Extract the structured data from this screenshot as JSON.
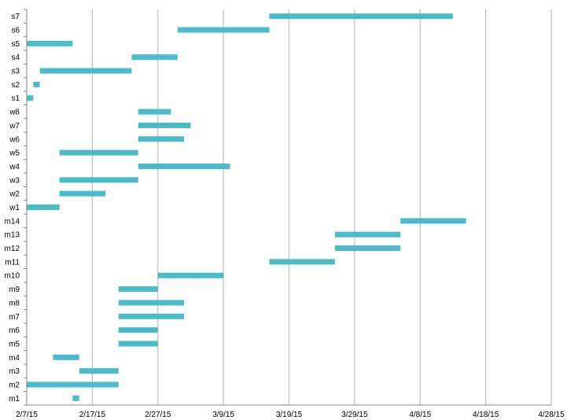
{
  "chart_data": {
    "type": "bar",
    "orientation": "horizontal",
    "subtype": "gantt",
    "title": "",
    "xlabel": "",
    "ylabel": "",
    "x_start_date": "2015-02-07",
    "xlim_days": [
      0,
      80
    ],
    "x_tick_step_days": 10,
    "x_tick_labels": [
      "2/7/15",
      "2/17/15",
      "2/27/15",
      "3/9/15",
      "3/19/15",
      "3/29/15",
      "4/8/15",
      "4/18/15",
      "4/28/15"
    ],
    "grid": true,
    "bar_color": "#4BBAC9",
    "grid_color": "#bfbfbf",
    "axis_color": "#868686",
    "categories": [
      "m1",
      "m2",
      "m3",
      "m4",
      "m5",
      "m6",
      "m7",
      "m8",
      "m9",
      "m10",
      "m11",
      "m12",
      "m13",
      "m14",
      "w1",
      "w2",
      "w3",
      "w4",
      "w5",
      "w6",
      "w7",
      "w8",
      "s1",
      "s2",
      "s3",
      "s4",
      "s5",
      "s6",
      "s7"
    ],
    "series": [
      {
        "name": "start_day",
        "values": [
          7,
          0,
          8,
          4,
          14,
          14,
          14,
          14,
          14,
          20,
          37,
          47,
          47,
          57,
          0,
          5,
          5,
          17,
          5,
          17,
          17,
          17,
          0,
          1,
          2,
          16,
          0,
          23,
          37
        ]
      },
      {
        "name": "duration_days",
        "values": [
          1,
          14,
          6,
          4,
          6,
          6,
          10,
          10,
          6,
          10,
          10,
          10,
          10,
          10,
          5,
          7,
          12,
          14,
          12,
          7,
          8,
          5,
          1,
          1,
          14,
          7,
          7,
          14,
          28
        ]
      }
    ]
  }
}
